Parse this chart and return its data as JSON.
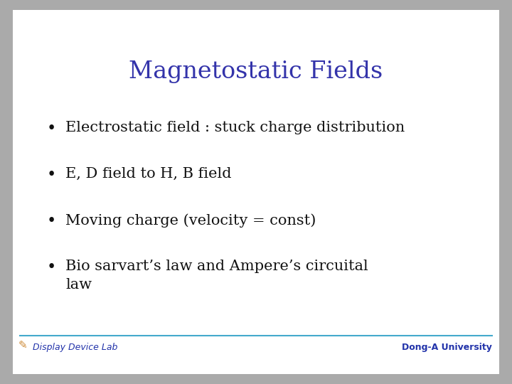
{
  "title": "Magnetostatic Fields",
  "title_color": "#3333aa",
  "title_fontsize": 24,
  "bullet_points": [
    "Electrostatic field : stuck charge distribution",
    "E, D field to H, B field",
    "Moving charge (velocity = const)",
    "Bio sarvart’s law and Ampere’s circuital\nlaw"
  ],
  "bullet_color": "#111111",
  "bullet_fontsize": 15,
  "background_color": "#aaaaaa",
  "slide_bg": "#ffffff",
  "footer_line_color": "#44aacc",
  "footer_left": "Display Device Lab",
  "footer_right": "Dong-A University",
  "footer_color": "#2233aa",
  "footer_fontsize": 9
}
